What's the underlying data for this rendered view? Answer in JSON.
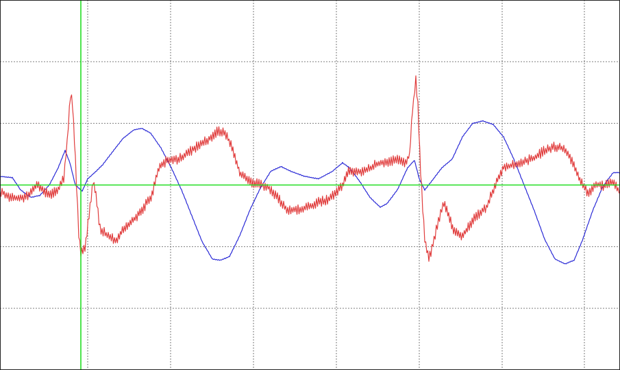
{
  "chart_data": {
    "type": "line",
    "title": "",
    "xlabel": "",
    "ylabel": "",
    "grid": true,
    "xlim": [
      0,
      905
    ],
    "ylim": [
      -3,
      3
    ],
    "grid_x": [
      128,
      249,
      370,
      491,
      612,
      733,
      853
    ],
    "grid_y": [
      -2,
      -1,
      0,
      1,
      2
    ],
    "cursor_vertical_x": 118,
    "cursor_horizontal_y": 0,
    "series": [
      {
        "color": "#2a2ad6",
        "noise": 0.006,
        "points": [
          [
            0,
            0.14
          ],
          [
            18,
            0.12
          ],
          [
            30,
            -0.08
          ],
          [
            45,
            -0.2
          ],
          [
            58,
            -0.17
          ],
          [
            72,
            0.0
          ],
          [
            85,
            0.28
          ],
          [
            95,
            0.56
          ],
          [
            102,
            0.36
          ],
          [
            110,
            0.0
          ],
          [
            120,
            -0.1
          ],
          [
            128,
            0.1
          ],
          [
            138,
            0.2
          ],
          [
            150,
            0.33
          ],
          [
            165,
            0.55
          ],
          [
            180,
            0.76
          ],
          [
            195,
            0.89
          ],
          [
            207,
            0.92
          ],
          [
            220,
            0.84
          ],
          [
            235,
            0.6
          ],
          [
            250,
            0.28
          ],
          [
            265,
            -0.08
          ],
          [
            280,
            -0.5
          ],
          [
            295,
            -0.92
          ],
          [
            310,
            -1.2
          ],
          [
            322,
            -1.22
          ],
          [
            335,
            -1.16
          ],
          [
            350,
            -0.82
          ],
          [
            365,
            -0.4
          ],
          [
            380,
            -0.05
          ],
          [
            395,
            0.22
          ],
          [
            410,
            0.3
          ],
          [
            425,
            0.22
          ],
          [
            445,
            0.14
          ],
          [
            465,
            0.1
          ],
          [
            485,
            0.22
          ],
          [
            500,
            0.36
          ],
          [
            510,
            0.28
          ],
          [
            525,
            0.06
          ],
          [
            540,
            -0.2
          ],
          [
            555,
            -0.36
          ],
          [
            565,
            -0.3
          ],
          [
            580,
            -0.08
          ],
          [
            595,
            0.28
          ],
          [
            605,
            0.4
          ],
          [
            612,
            0.1
          ],
          [
            620,
            -0.08
          ],
          [
            630,
            0.06
          ],
          [
            645,
            0.28
          ],
          [
            660,
            0.42
          ],
          [
            675,
            0.78
          ],
          [
            690,
            1.0
          ],
          [
            705,
            1.04
          ],
          [
            720,
            0.98
          ],
          [
            735,
            0.78
          ],
          [
            750,
            0.42
          ],
          [
            765,
            0.0
          ],
          [
            780,
            -0.42
          ],
          [
            795,
            -0.88
          ],
          [
            810,
            -1.2
          ],
          [
            825,
            -1.28
          ],
          [
            838,
            -1.22
          ],
          [
            850,
            -0.9
          ],
          [
            865,
            -0.42
          ],
          [
            880,
            -0.02
          ],
          [
            895,
            0.2
          ],
          [
            905,
            0.2
          ]
        ]
      },
      {
        "color": "#e03c3c",
        "noise": 0.07,
        "points": [
          [
            0,
            -0.1
          ],
          [
            15,
            -0.2
          ],
          [
            30,
            -0.22
          ],
          [
            45,
            -0.14
          ],
          [
            55,
            0.02
          ],
          [
            65,
            -0.12
          ],
          [
            75,
            -0.14
          ],
          [
            85,
            -0.06
          ],
          [
            93,
            0.1
          ],
          [
            98,
            0.7
          ],
          [
            103,
            1.48
          ],
          [
            106,
            1.3
          ],
          [
            110,
            0.4
          ],
          [
            115,
            -0.8
          ],
          [
            118,
            -1.12
          ],
          [
            124,
            -1.02
          ],
          [
            130,
            -0.5
          ],
          [
            136,
            0.06
          ],
          [
            140,
            -0.16
          ],
          [
            146,
            -0.7
          ],
          [
            158,
            -0.84
          ],
          [
            170,
            -0.9
          ],
          [
            180,
            -0.72
          ],
          [
            190,
            -0.62
          ],
          [
            200,
            -0.5
          ],
          [
            210,
            -0.36
          ],
          [
            222,
            -0.16
          ],
          [
            232,
            0.3
          ],
          [
            245,
            0.4
          ],
          [
            260,
            0.42
          ],
          [
            275,
            0.52
          ],
          [
            290,
            0.65
          ],
          [
            305,
            0.74
          ],
          [
            318,
            0.88
          ],
          [
            330,
            0.82
          ],
          [
            340,
            0.58
          ],
          [
            350,
            0.2
          ],
          [
            362,
            0.06
          ],
          [
            375,
            0.02
          ],
          [
            390,
            -0.02
          ],
          [
            405,
            -0.2
          ],
          [
            420,
            -0.42
          ],
          [
            435,
            -0.4
          ],
          [
            450,
            -0.36
          ],
          [
            465,
            -0.28
          ],
          [
            478,
            -0.24
          ],
          [
            490,
            -0.14
          ],
          [
            500,
            0.0
          ],
          [
            510,
            0.24
          ],
          [
            520,
            0.2
          ],
          [
            535,
            0.24
          ],
          [
            550,
            0.34
          ],
          [
            565,
            0.38
          ],
          [
            580,
            0.4
          ],
          [
            592,
            0.36
          ],
          [
            598,
            0.5
          ],
          [
            602,
            1.2
          ],
          [
            607,
            1.7
          ],
          [
            610,
            1.3
          ],
          [
            614,
            0.2
          ],
          [
            620,
            -0.9
          ],
          [
            626,
            -1.2
          ],
          [
            632,
            -0.96
          ],
          [
            640,
            -0.58
          ],
          [
            648,
            -0.3
          ],
          [
            655,
            -0.5
          ],
          [
            662,
            -0.72
          ],
          [
            672,
            -0.84
          ],
          [
            682,
            -0.72
          ],
          [
            695,
            -0.5
          ],
          [
            710,
            -0.36
          ],
          [
            722,
            -0.02
          ],
          [
            735,
            0.3
          ],
          [
            750,
            0.32
          ],
          [
            765,
            0.38
          ],
          [
            780,
            0.44
          ],
          [
            795,
            0.56
          ],
          [
            810,
            0.62
          ],
          [
            820,
            0.6
          ],
          [
            832,
            0.46
          ],
          [
            845,
            0.12
          ],
          [
            858,
            -0.14
          ],
          [
            870,
            0.02
          ],
          [
            882,
            -0.02
          ],
          [
            895,
            0.04
          ],
          [
            905,
            -0.12
          ]
        ]
      }
    ]
  }
}
